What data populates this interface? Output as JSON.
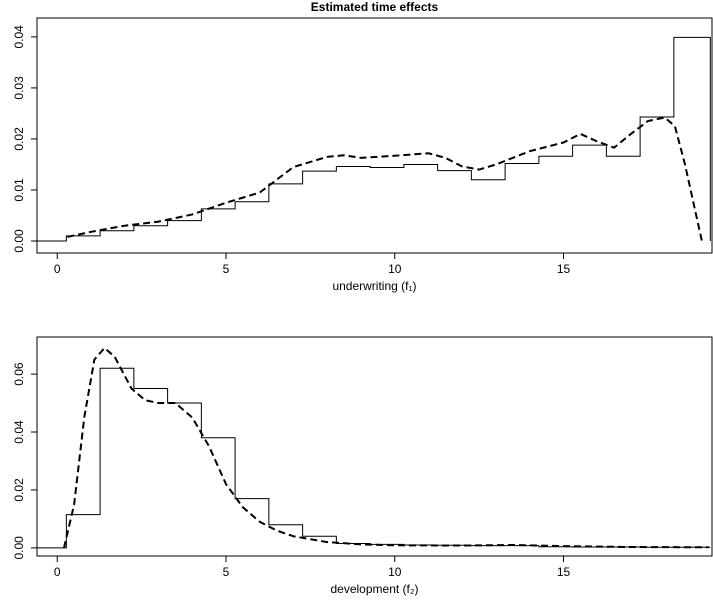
{
  "chart_data": [
    {
      "type": "line",
      "title": "Estimated time effects",
      "xlabel": "underwriting (f₁)",
      "xlim": [
        -0.6,
        19.4
      ],
      "ylim": [
        -0.00235,
        0.0437
      ],
      "xticks": [
        0,
        5,
        10,
        15
      ],
      "yticks": [
        {
          "value": 0,
          "label": "0.00"
        },
        0.01,
        0.02,
        0.03,
        0.04
      ],
      "series": [
        {
          "style": "step",
          "color": "#000000",
          "x": [
            -0.6,
            0.27,
            1.27,
            2.27,
            3.27,
            4.27,
            5.27,
            6.27,
            7.27,
            8.27,
            9.27,
            10.27,
            11.27,
            12.27,
            13.27,
            14.27,
            15.27,
            16.27,
            17.27,
            18.27,
            19.35
          ],
          "values": [
            0,
            0.001,
            0.002,
            0.003,
            0.004,
            0.0063,
            0.0077,
            0.0112,
            0.0137,
            0.0146,
            0.0144,
            0.015,
            0.0138,
            0.012,
            0.0152,
            0.0166,
            0.0188,
            0.0166,
            0.0243,
            0.0399,
            0
          ]
        },
        {
          "style": "dashed",
          "color": "#000000",
          "x": [
            0.3,
            1,
            2,
            3,
            4,
            5,
            6,
            7,
            8,
            8.5,
            9,
            10,
            11,
            11.5,
            12,
            12.5,
            13,
            14,
            15,
            15.5,
            16,
            16.5,
            17,
            17.5,
            18,
            18.3,
            18.6,
            18.9,
            19.1
          ],
          "values": [
            0.0008,
            0.0018,
            0.003,
            0.0038,
            0.0052,
            0.0075,
            0.0095,
            0.0145,
            0.0165,
            0.0168,
            0.0163,
            0.0167,
            0.0172,
            0.0163,
            0.0146,
            0.014,
            0.015,
            0.0176,
            0.0193,
            0.021,
            0.0195,
            0.0183,
            0.021,
            0.0235,
            0.0242,
            0.0225,
            0.015,
            0.006,
            0
          ]
        }
      ]
    },
    {
      "type": "line",
      "xlabel": "development (f₂)",
      "xlim": [
        -0.6,
        19.4
      ],
      "ylim": [
        -0.0028,
        0.0728
      ],
      "xticks": [
        0,
        5,
        10,
        15
      ],
      "yticks": [
        {
          "value": 0,
          "label": "0.00"
        },
        0.02,
        0.04,
        0.06
      ],
      "series": [
        {
          "style": "step",
          "color": "#000000",
          "x": [
            -0.6,
            0.27,
            1.27,
            2.27,
            3.27,
            4.27,
            5.27,
            6.27,
            7.27,
            8.27,
            9.27,
            10.27,
            11.27,
            12.27,
            13.27,
            14.27,
            15.27,
            16.27,
            17.27,
            18.27,
            19.35
          ],
          "values": [
            0,
            0.0115,
            0.062,
            0.055,
            0.05,
            0.038,
            0.017,
            0.008,
            0.004,
            0.0015,
            0.0012,
            0.001,
            0.0009,
            0.0008,
            0.0008,
            0.0004,
            0.0003,
            0.0003,
            0.0002,
            0.0002,
            0.0002
          ]
        },
        {
          "style": "dashed",
          "color": "#000000",
          "x": [
            0.2,
            0.5,
            0.8,
            1.1,
            1.4,
            1.7,
            2.2,
            2.6,
            3,
            3.5,
            4,
            4.5,
            5,
            5.5,
            6,
            6.5,
            7,
            8,
            9,
            10,
            12,
            13.5,
            15,
            17,
            19.3
          ],
          "values": [
            0,
            0.015,
            0.045,
            0.065,
            0.069,
            0.066,
            0.055,
            0.051,
            0.05,
            0.05,
            0.045,
            0.035,
            0.022,
            0.014,
            0.009,
            0.006,
            0.004,
            0.002,
            0.0012,
            0.0009,
            0.0008,
            0.001,
            0.0006,
            0.0003,
            0.0002
          ]
        }
      ]
    }
  ]
}
